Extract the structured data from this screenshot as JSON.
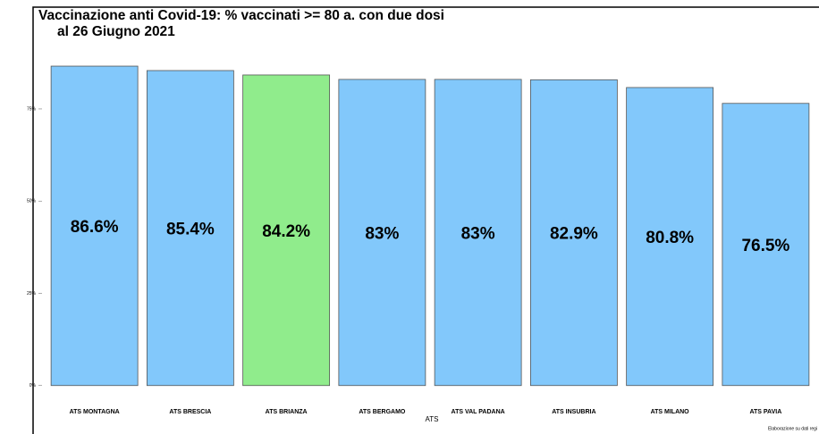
{
  "chart_data": {
    "type": "bar",
    "title": [
      "Vaccinazione anti Covid-19: % vaccinati >= 80 a. con due dosi",
      "al 26 Giugno 2021"
    ],
    "x_label": "ATS",
    "caption": "Elaborazione su dati regi",
    "categories": [
      "ATS MONTAGNA",
      "ATS BRESCIA",
      "ATS BRIANZA",
      "ATS BERGAMO",
      "ATS VAL PADANA",
      "ATS INSUBRIA",
      "ATS MILANO",
      "ATS PAVIA"
    ],
    "values": [
      86.6,
      85.4,
      84.2,
      83,
      83,
      82.9,
      80.8,
      76.5
    ],
    "value_labels": [
      "86.6%",
      "85.4%",
      "84.2%",
      "83%",
      "83%",
      "82.9%",
      "80.8%",
      "76.5%"
    ],
    "colors": [
      "#82c8fb",
      "#82c8fb",
      "#90ec8c",
      "#82c8fb",
      "#82c8fb",
      "#82c8fb",
      "#82c8fb",
      "#82c8fb"
    ],
    "ylim": [
      -2,
      90
    ],
    "yticks": [
      {
        "value": 0,
        "label": "0%"
      },
      {
        "value": 25,
        "label": "25%"
      },
      {
        "value": 50,
        "label": "50%"
      },
      {
        "value": 75,
        "label": "75%"
      }
    ],
    "grid": false
  }
}
